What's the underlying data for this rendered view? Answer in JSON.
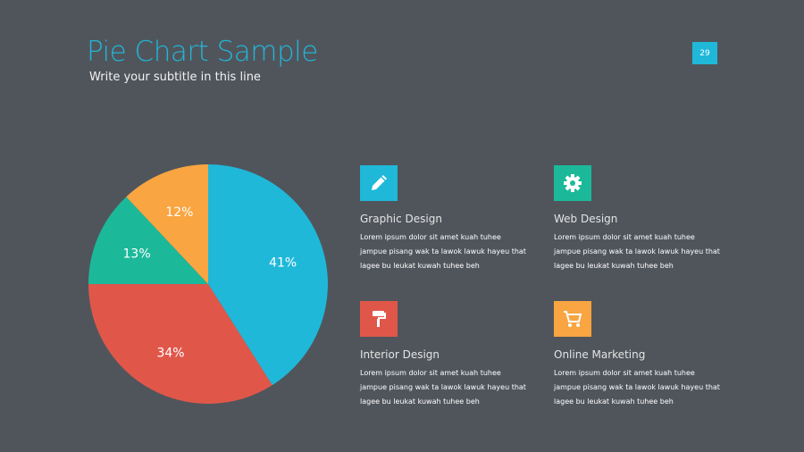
{
  "slide": {
    "title": "Pie Chart Sample",
    "subtitle": "Write your subtitle in this line",
    "page_number": "29"
  },
  "chart_data": {
    "type": "pie",
    "title": "Pie Chart Sample",
    "start": "top",
    "direction": "clockwise",
    "slices": [
      {
        "label": "41%",
        "value": 41,
        "color": "#1fb8d9"
      },
      {
        "label": "34%",
        "value": 34,
        "color": "#e0574a"
      },
      {
        "label": "13%",
        "value": 13,
        "color": "#1bb99a"
      },
      {
        "label": "12%",
        "value": 12,
        "color": "#f9a541"
      }
    ]
  },
  "cards": [
    {
      "title": "Graphic Design",
      "icon": "pencil-icon",
      "color": "#1fb8d9",
      "text": "Lorem ipsum dolor sit amet kuah tuhee jampue pisang wak ta lawok lawuk hayeu that lagee bu leukat kuwah tuhee beh"
    },
    {
      "title": "Web Design",
      "icon": "gear-icon",
      "color": "#1bb99a",
      "text": "Lorem ipsum dolor sit amet kuah tuhee jampue pisang wak ta lawok lawuk hayeu that lagee bu leukat kuwah tuhee beh"
    },
    {
      "title": "Interior Design",
      "icon": "paint-roller-icon",
      "color": "#e0574a",
      "text": "Lorem ipsum dolor sit amet kuah tuhee jampue pisang wak ta lawok lawuk hayeu that lagee bu leukat kuwah tuhee beh"
    },
    {
      "title": "Online Marketing",
      "icon": "cart-icon",
      "color": "#f9a541",
      "text": "Lorem ipsum dolor sit amet kuah tuhee jampue pisang wak ta lawok lawuk hayeu that lagee bu leukat kuwah tuhee beh"
    }
  ]
}
